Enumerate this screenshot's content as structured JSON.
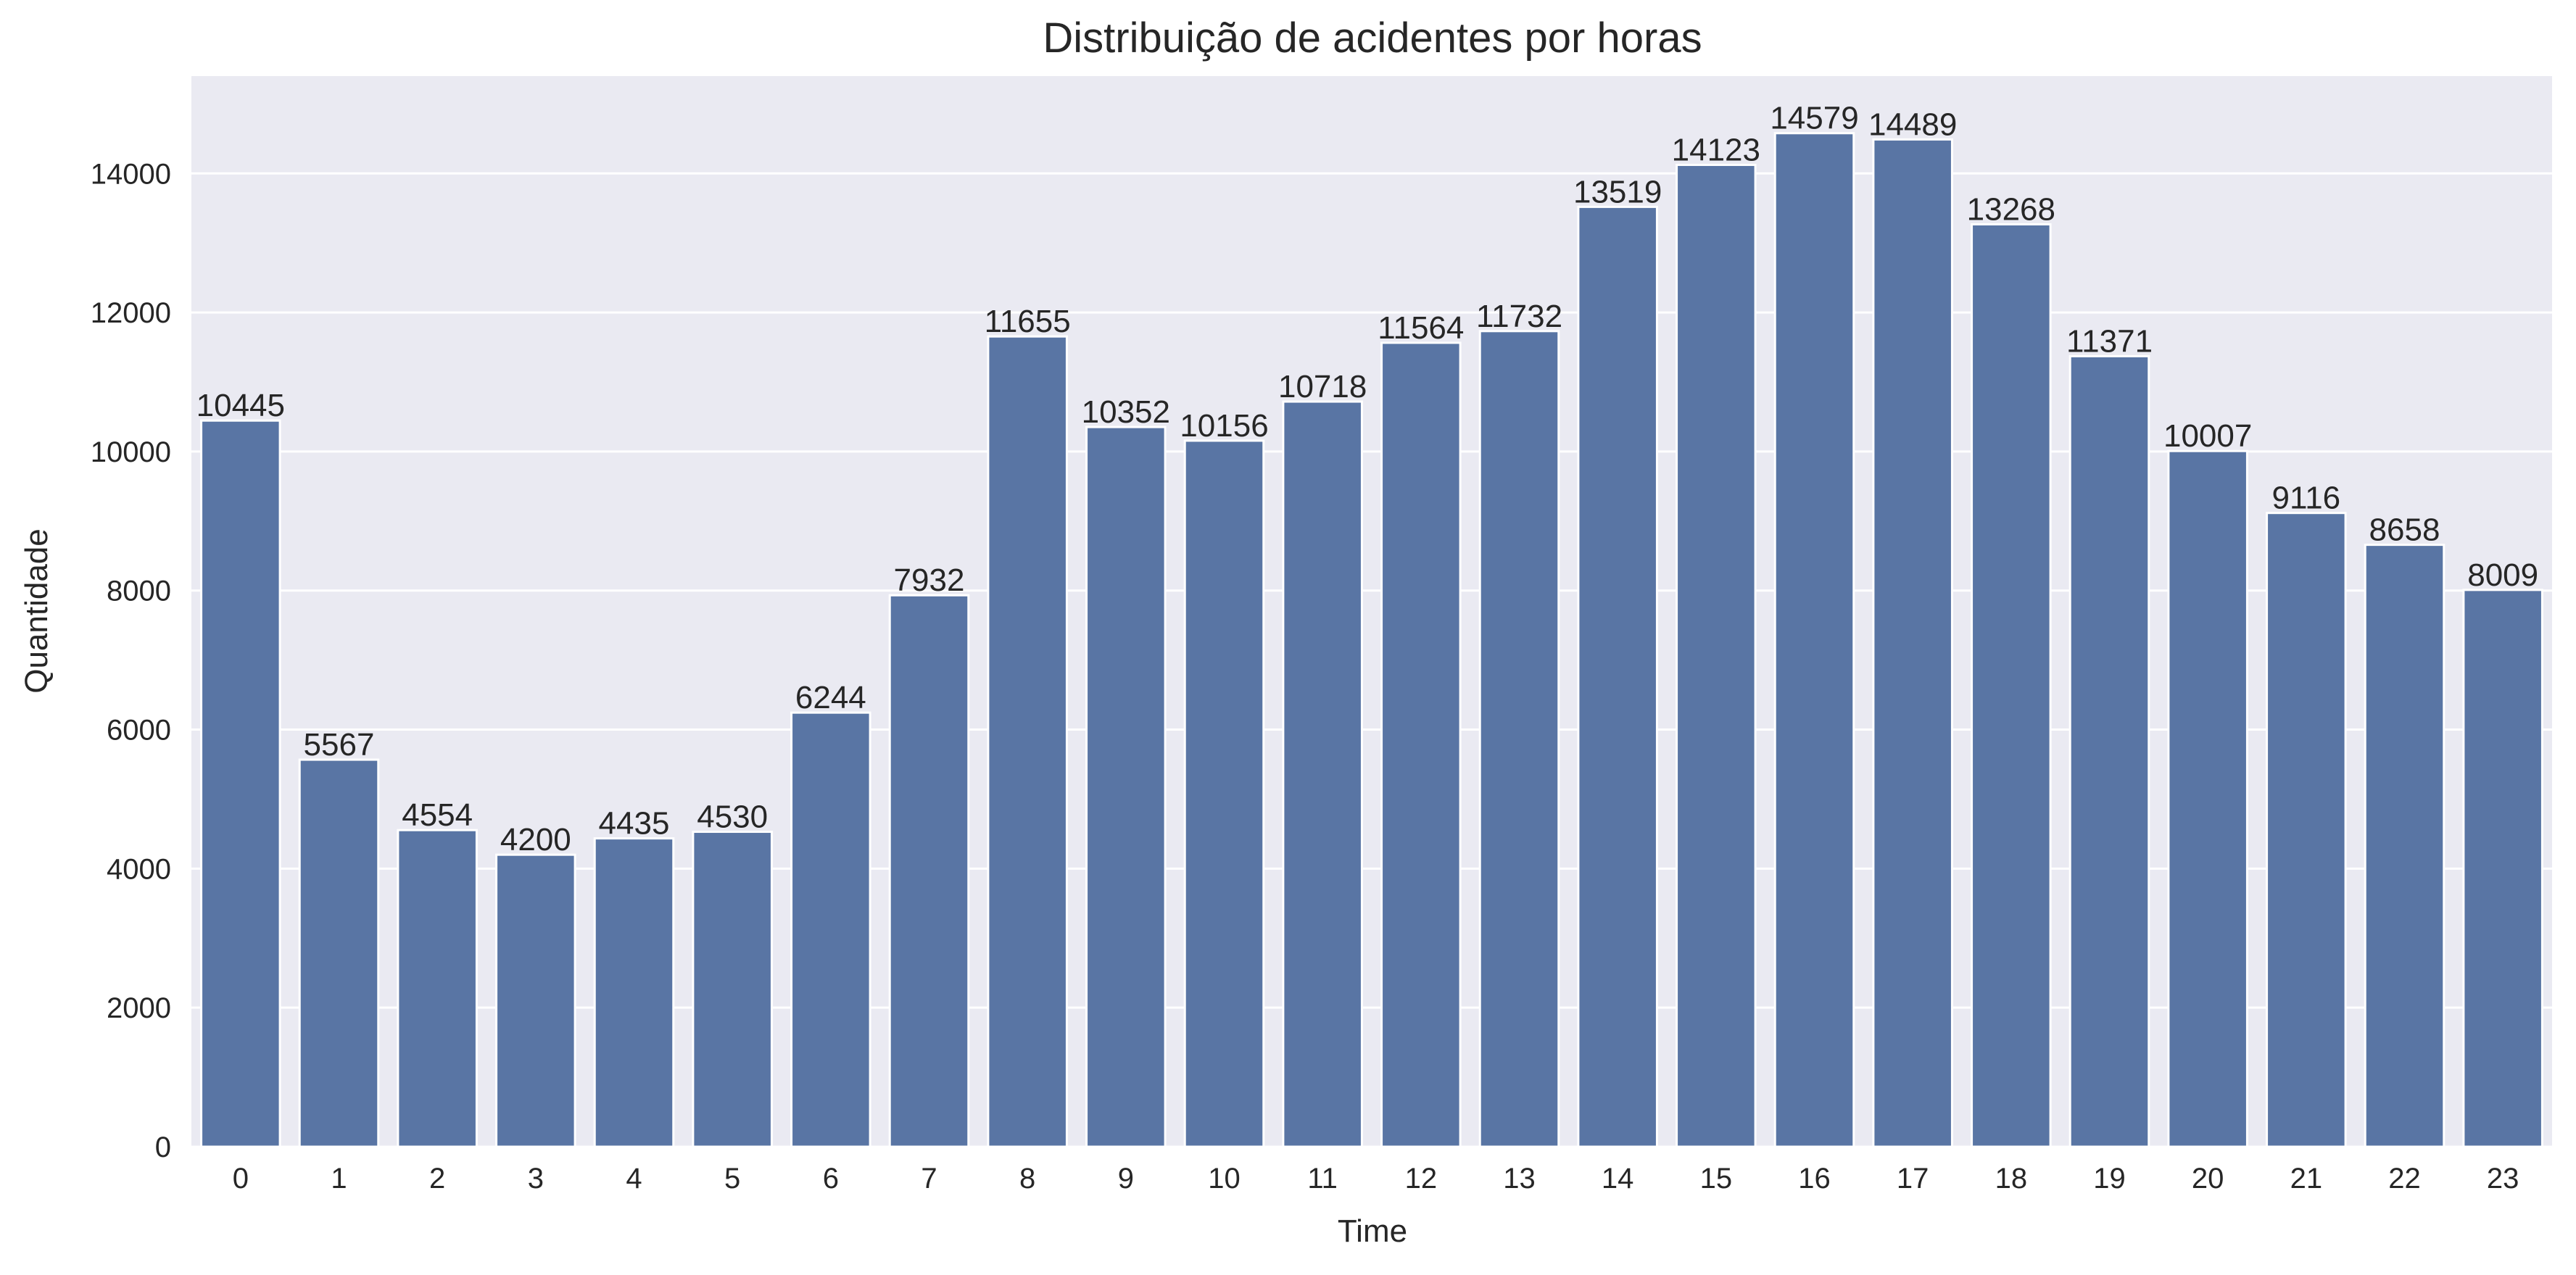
{
  "chart_data": {
    "type": "bar",
    "title": "Distribuição de acidentes por horas",
    "xlabel": "Time",
    "ylabel": "Quantidade",
    "categories": [
      "0",
      "1",
      "2",
      "3",
      "4",
      "5",
      "6",
      "7",
      "8",
      "9",
      "10",
      "11",
      "12",
      "13",
      "14",
      "15",
      "16",
      "17",
      "18",
      "19",
      "20",
      "21",
      "22",
      "23"
    ],
    "values": [
      10445,
      5567,
      4554,
      4200,
      4435,
      4530,
      6244,
      7932,
      11655,
      10352,
      10156,
      10718,
      11564,
      11732,
      13519,
      14123,
      14579,
      14489,
      13268,
      11371,
      10007,
      9116,
      8658,
      8009
    ],
    "ylim": [
      0,
      15400
    ],
    "yticks": [
      0,
      2000,
      4000,
      6000,
      8000,
      10000,
      12000,
      14000
    ],
    "grid": true,
    "legend": "none",
    "colors": {
      "bar": "#5975a4",
      "plot_background": "#eaeaf2",
      "grid": "#ffffff",
      "text": "#262626"
    }
  }
}
